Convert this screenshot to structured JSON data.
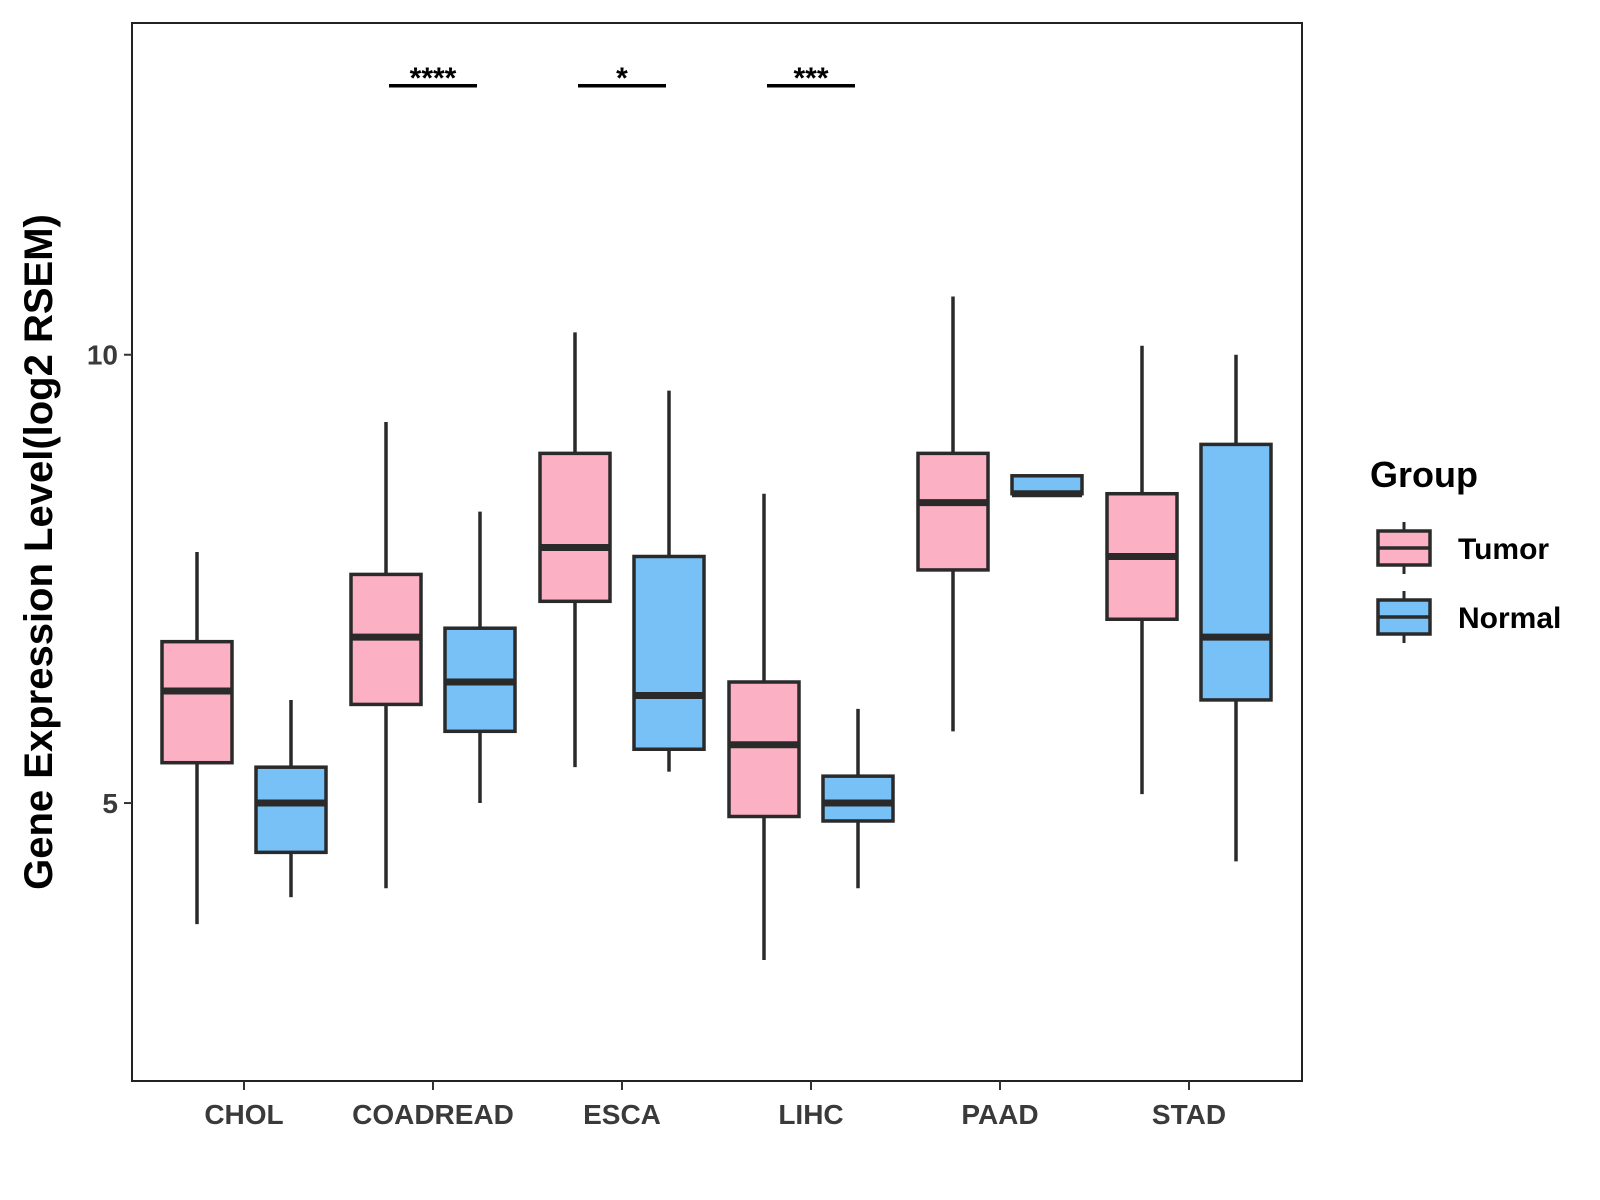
{
  "chart_data": {
    "type": "box",
    "title": "",
    "xlabel": "",
    "ylabel": "Gene Expression Level(log2 RSEM)",
    "ylim": [
      1.9,
      13.7
    ],
    "yticks": [
      5,
      10
    ],
    "grid": false,
    "legend": {
      "title": "Group",
      "position": "right",
      "entries": [
        "Tumor",
        "Normal"
      ]
    },
    "categories": [
      "CHOL",
      "COADREAD",
      "ESCA",
      "LIHC",
      "PAAD",
      "STAD"
    ],
    "series": [
      {
        "name": "Tumor",
        "color": "#fbb1c3",
        "boxes": [
          {
            "min": 3.65,
            "q1": 5.45,
            "median": 6.25,
            "q3": 6.8,
            "max": 7.8
          },
          {
            "min": 4.05,
            "q1": 6.1,
            "median": 6.85,
            "q3": 7.55,
            "max": 9.25
          },
          {
            "min": 5.4,
            "q1": 7.25,
            "median": 7.85,
            "q3": 8.9,
            "max": 10.25
          },
          {
            "min": 3.25,
            "q1": 4.85,
            "median": 5.65,
            "q3": 6.35,
            "max": 8.45
          },
          {
            "min": 5.8,
            "q1": 7.6,
            "median": 8.35,
            "q3": 8.9,
            "max": 10.65
          },
          {
            "min": 5.1,
            "q1": 7.05,
            "median": 7.75,
            "q3": 8.45,
            "max": 10.1
          }
        ]
      },
      {
        "name": "Normal",
        "color": "#77c1f7",
        "boxes": [
          {
            "min": 3.95,
            "q1": 4.45,
            "median": 5.0,
            "q3": 5.4,
            "max": 6.15
          },
          {
            "min": 5.0,
            "q1": 5.8,
            "median": 6.35,
            "q3": 6.95,
            "max": 8.25
          },
          {
            "min": 5.35,
            "q1": 5.6,
            "median": 6.2,
            "q3": 7.75,
            "max": 9.6
          },
          {
            "min": 4.05,
            "q1": 4.8,
            "median": 5.0,
            "q3": 5.3,
            "max": 6.05
          },
          {
            "min": 8.45,
            "q1": 8.45,
            "median": 8.45,
            "q3": 8.65,
            "max": 8.65
          },
          {
            "min": 4.35,
            "q1": 6.15,
            "median": 6.85,
            "q3": 9.0,
            "max": 10.0
          }
        ]
      }
    ],
    "annotations": [
      {
        "category": "COADREAD",
        "label": "****",
        "y": 13.0
      },
      {
        "category": "ESCA",
        "label": "*",
        "y": 13.0
      },
      {
        "category": "LIHC",
        "label": "***",
        "y": 13.0
      }
    ]
  }
}
